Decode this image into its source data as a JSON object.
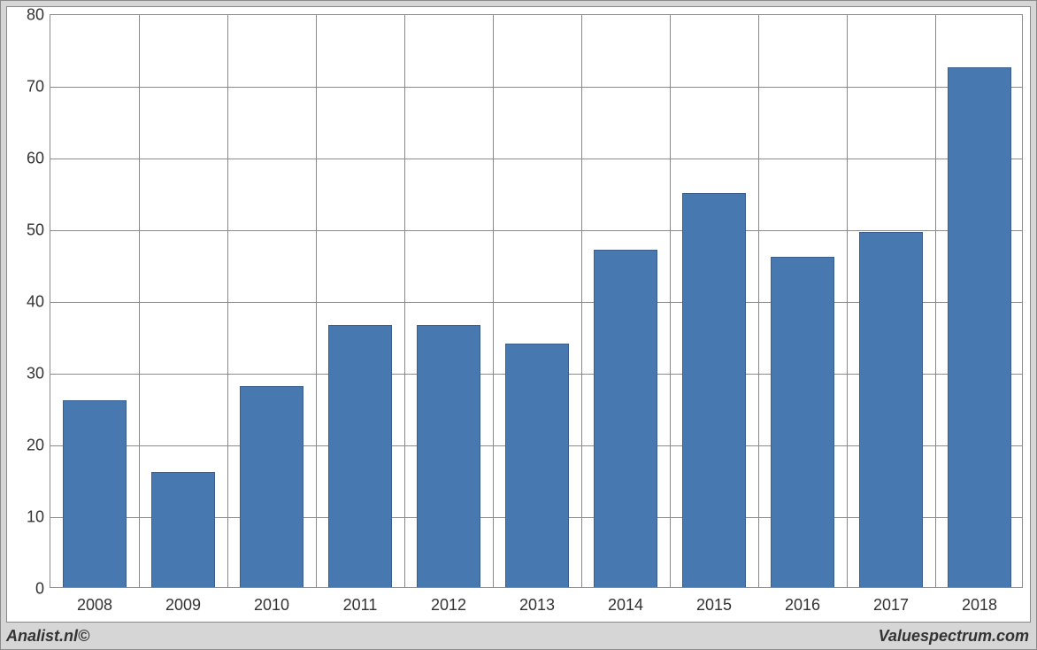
{
  "chart": {
    "type": "bar",
    "categories": [
      "2008",
      "2009",
      "2010",
      "2011",
      "2012",
      "2013",
      "2014",
      "2015",
      "2016",
      "2017",
      "2018"
    ],
    "values": [
      26,
      16,
      28,
      36.5,
      36.5,
      34,
      47,
      55,
      46,
      49.5,
      72.5
    ],
    "bar_color": "#4878b0",
    "bar_border_color": "#3a5f8f",
    "ylim_min": 0,
    "ylim_max": 80,
    "ytick_step": 10,
    "yticks": [
      0,
      10,
      20,
      30,
      40,
      50,
      60,
      70,
      80
    ],
    "grid_color": "#8a8a8a",
    "background_color": "#ffffff",
    "frame_background": "#d6d6d6",
    "bar_width_ratio": 0.72,
    "axis_fontsize": 18,
    "axis_color": "#333333"
  },
  "footer": {
    "left": "Analist.nl©",
    "right": "Valuespectrum.com"
  }
}
